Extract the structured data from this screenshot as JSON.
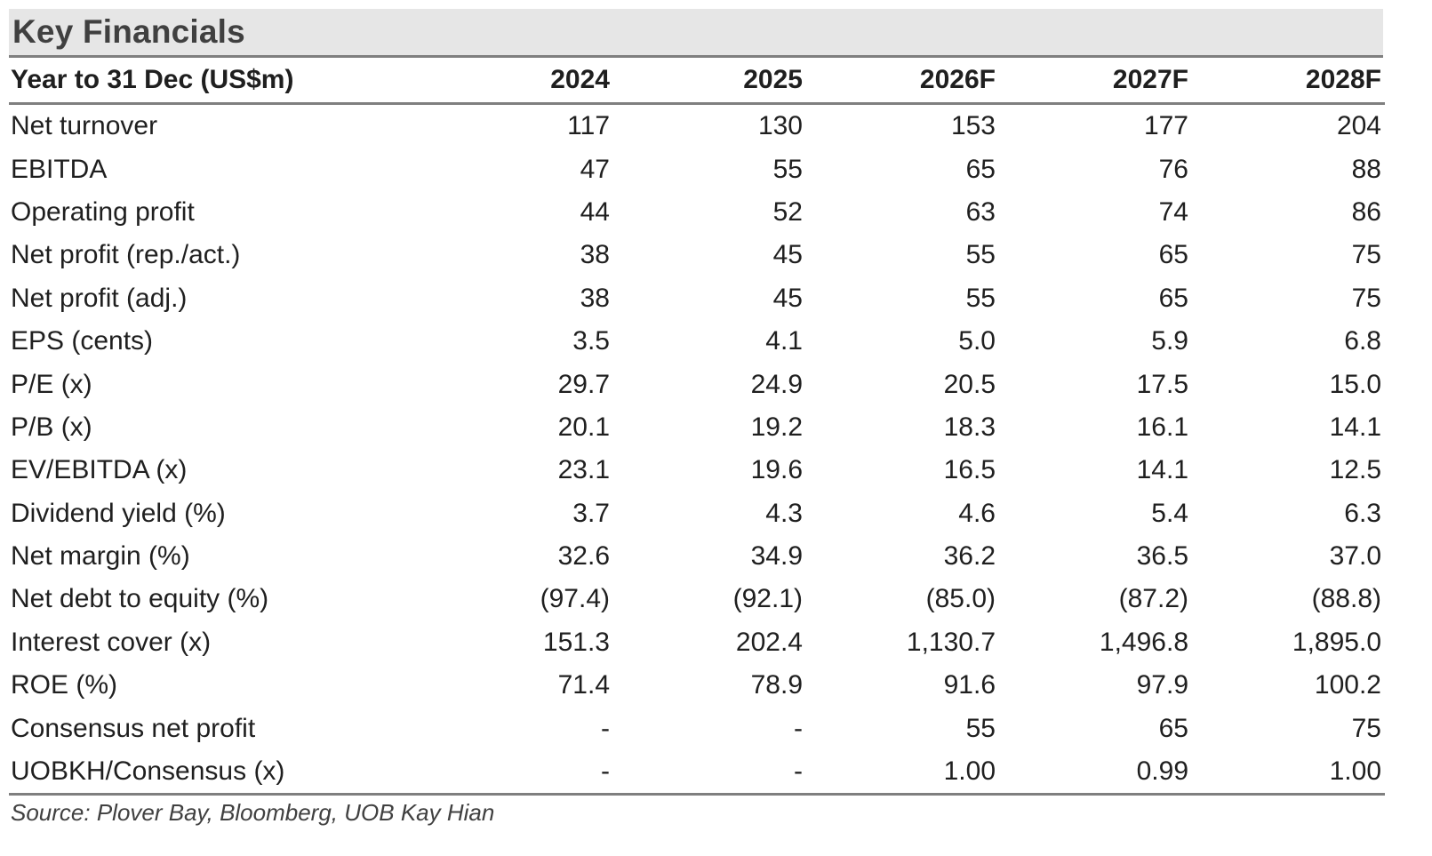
{
  "title": "Key Financials",
  "header": {
    "label": "Year to 31 Dec (US$m)",
    "years": [
      "2024",
      "2025",
      "2026F",
      "2027F",
      "2028F"
    ]
  },
  "rows": [
    {
      "label": "Net turnover",
      "values": [
        "117",
        "130",
        "153",
        "177",
        "204"
      ]
    },
    {
      "label": "EBITDA",
      "values": [
        "47",
        "55",
        "65",
        "76",
        "88"
      ]
    },
    {
      "label": "Operating profit",
      "values": [
        "44",
        "52",
        "63",
        "74",
        "86"
      ]
    },
    {
      "label": "Net profit (rep./act.)",
      "values": [
        "38",
        "45",
        "55",
        "65",
        "75"
      ]
    },
    {
      "label": "Net profit (adj.)",
      "values": [
        "38",
        "45",
        "55",
        "65",
        "75"
      ]
    },
    {
      "label": "EPS (cents)",
      "values": [
        "3.5",
        "4.1",
        "5.0",
        "5.9",
        "6.8"
      ]
    },
    {
      "label": "P/E (x)",
      "values": [
        "29.7",
        "24.9",
        "20.5",
        "17.5",
        "15.0"
      ]
    },
    {
      "label": "P/B (x)",
      "values": [
        "20.1",
        "19.2",
        "18.3",
        "16.1",
        "14.1"
      ]
    },
    {
      "label": "EV/EBITDA (x)",
      "values": [
        "23.1",
        "19.6",
        "16.5",
        "14.1",
        "12.5"
      ]
    },
    {
      "label": "Dividend yield (%)",
      "values": [
        "3.7",
        "4.3",
        "4.6",
        "5.4",
        "6.3"
      ]
    },
    {
      "label": "Net margin (%)",
      "values": [
        "32.6",
        "34.9",
        "36.2",
        "36.5",
        "37.0"
      ]
    },
    {
      "label": "Net debt to equity (%)",
      "values": [
        "(97.4)",
        "(92.1)",
        "(85.0)",
        "(87.2)",
        "(88.8)"
      ]
    },
    {
      "label": "Interest cover (x)",
      "values": [
        "151.3",
        "202.4",
        "1,130.7",
        "1,496.8",
        "1,895.0"
      ]
    },
    {
      "label": "ROE (%)",
      "values": [
        "71.4",
        "78.9",
        "91.6",
        "97.9",
        "100.2"
      ]
    },
    {
      "label": "Consensus net profit",
      "values": [
        "-",
        "-",
        "55",
        "65",
        "75"
      ]
    },
    {
      "label": "UOBKH/Consensus (x)",
      "values": [
        "-",
        "-",
        "1.00",
        "0.99",
        "1.00"
      ]
    }
  ],
  "source": "Source: Plover Bay, Bloomberg, UOB Kay Hian"
}
